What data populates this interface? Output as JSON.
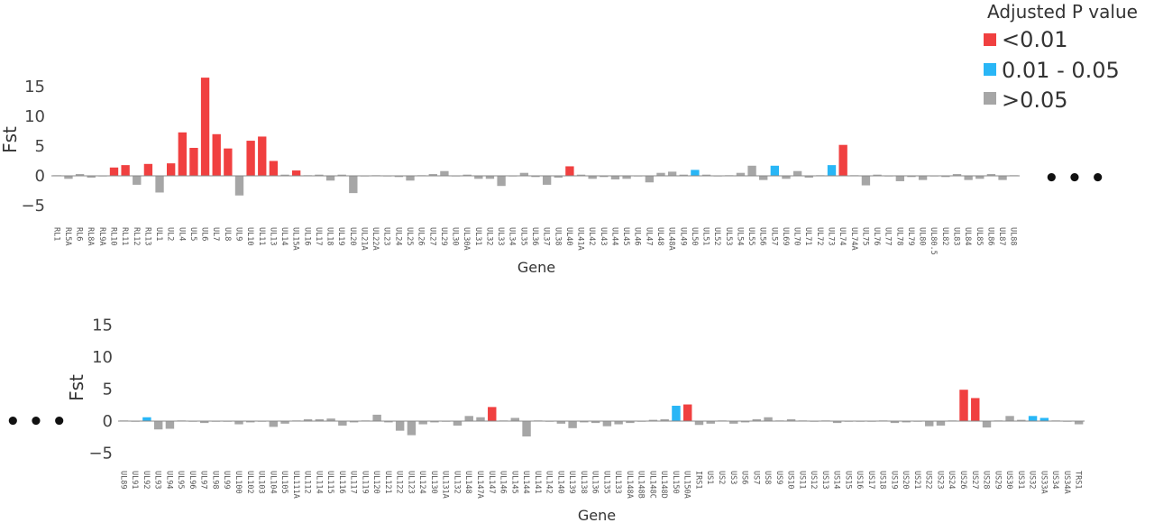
{
  "colors": {
    "<0.01": "#f04040",
    "0.01 - 0.05": "#29b6f6",
    ">0.05": "#a6a6a6"
  },
  "legend": {
    "title": "Adjusted P value",
    "entries": [
      {
        "key": "<0.01",
        "label": "<0.01"
      },
      {
        "key": "0.01 - 0.05",
        "label": "0.01 - 0.05"
      },
      {
        "key": ">0.05",
        "label": ">0.05"
      }
    ]
  },
  "continuation_marker": "• • •",
  "chart_data": [
    {
      "type": "bar",
      "title": "",
      "xlabel": "Gene",
      "ylabel": "Fst",
      "ylim": [
        -6,
        17.5
      ],
      "yticks": [
        -5,
        0,
        5,
        10,
        15
      ],
      "grid": false,
      "categories": [
        "RL1",
        "RL5A",
        "RL6",
        "RL8A",
        "RL9A",
        "RL10",
        "RL11",
        "RL12",
        "RL13",
        "UL1",
        "UL2",
        "UL4",
        "UL5",
        "UL6",
        "UL7",
        "UL8",
        "UL9",
        "UL10",
        "UL11",
        "UL13",
        "UL14",
        "UL15A",
        "UL16",
        "UL17",
        "UL18",
        "UL19",
        "UL20",
        "UL21A",
        "UL22A",
        "UL23",
        "UL24",
        "UL25",
        "UL26",
        "UL27",
        "UL29",
        "UL30",
        "UL30A",
        "UL31",
        "UL32",
        "UL33",
        "UL34",
        "UL35",
        "UL36",
        "UL37",
        "UL38",
        "UL40",
        "UL41A",
        "UL42",
        "UL43",
        "UL44",
        "UL45",
        "UL46",
        "UL47",
        "UL48",
        "UL48A",
        "UL49",
        "UL50",
        "UL51",
        "UL52",
        "UL53",
        "UL54",
        "UL55",
        "UL56",
        "UL57",
        "UL69",
        "UL70",
        "UL71",
        "UL72",
        "UL73",
        "UL74",
        "UL74A",
        "UL75",
        "UL76",
        "UL77",
        "UL78",
        "UL79",
        "UL80",
        "UL80.5",
        "UL82",
        "UL83",
        "UL84",
        "UL85",
        "UL86",
        "UL87",
        "UL88"
      ],
      "values": [
        0.1,
        -0.5,
        0.3,
        -0.3,
        -0.1,
        1.4,
        1.8,
        -1.5,
        2.0,
        -2.8,
        2.1,
        7.3,
        4.7,
        16.5,
        7.0,
        4.6,
        -3.3,
        5.9,
        6.6,
        2.5,
        0.2,
        0.9,
        0.1,
        0.2,
        -0.8,
        0.2,
        -2.9,
        -0.1,
        0.1,
        -0.1,
        -0.2,
        -0.8,
        0.1,
        0.3,
        0.8,
        -0.1,
        0.2,
        -0.5,
        -0.5,
        -1.7,
        -0.1,
        0.5,
        -0.2,
        -1.5,
        -0.3,
        1.6,
        0.2,
        -0.5,
        -0.2,
        -0.6,
        -0.5,
        -0.1,
        -1.1,
        0.5,
        0.7,
        0.2,
        1.0,
        0.2,
        -0.1,
        0.1,
        0.5,
        1.7,
        -0.7,
        1.7,
        -0.5,
        0.8,
        -0.3,
        0.1,
        1.8,
        5.2,
        0.1,
        -1.6,
        0.2,
        -0.1,
        -0.9,
        -0.2,
        -0.7,
        -0.1,
        -0.2,
        0.3,
        -0.7,
        -0.5,
        0.3,
        -0.7,
        0.1
      ],
      "significance": [
        "ns",
        "ns",
        "ns",
        "ns",
        "ns",
        "<0.01",
        "<0.01",
        "ns",
        "<0.01",
        "ns",
        "<0.01",
        "<0.01",
        "<0.01",
        "<0.01",
        "<0.01",
        "<0.01",
        "ns",
        "<0.01",
        "<0.01",
        "<0.01",
        "ns",
        "<0.01",
        "ns",
        "ns",
        "ns",
        "ns",
        "ns",
        "ns",
        "ns",
        "ns",
        "ns",
        "ns",
        "ns",
        "ns",
        "ns",
        "ns",
        "ns",
        "ns",
        "ns",
        "ns",
        "ns",
        "ns",
        "ns",
        "ns",
        "ns",
        "<0.01",
        "ns",
        "ns",
        "ns",
        "ns",
        "ns",
        "ns",
        "ns",
        "ns",
        "ns",
        "ns",
        "0.01-0.05",
        "ns",
        "ns",
        "ns",
        "ns",
        "ns",
        "ns",
        "0.01-0.05",
        "ns",
        "ns",
        "ns",
        "ns",
        "0.01-0.05",
        "<0.01",
        "ns",
        "ns",
        "ns",
        "ns",
        "ns",
        "ns",
        "ns",
        "ns",
        "ns",
        "ns",
        "ns",
        "ns",
        "ns",
        "ns",
        "ns"
      ]
    },
    {
      "type": "bar",
      "title": "",
      "xlabel": "Gene",
      "ylabel": "Fst",
      "ylim": [
        -6,
        17.5
      ],
      "yticks": [
        -5,
        0,
        5,
        10,
        15
      ],
      "grid": false,
      "categories": [
        "UL89",
        "UL91",
        "UL92",
        "UL93",
        "UL94",
        "UL95",
        "UL96",
        "UL97",
        "UL98",
        "UL99",
        "UL100",
        "UL102",
        "UL103",
        "UL104",
        "UL105",
        "UL111A",
        "UL112",
        "UL114",
        "UL115",
        "UL116",
        "UL117",
        "UL119",
        "UL120",
        "UL121",
        "UL122",
        "UL123",
        "UL124",
        "UL130",
        "UL131A",
        "UL132",
        "UL148",
        "UL147A",
        "UL147",
        "UL146",
        "UL145",
        "UL144",
        "UL141",
        "UL142",
        "UL140",
        "UL139",
        "UL138",
        "UL136",
        "UL135",
        "UL133",
        "UL148A",
        "UL148B",
        "UL148C",
        "UL148D",
        "UL150",
        "UL150A",
        "IRS1",
        "US1",
        "US2",
        "US3",
        "US6",
        "US7",
        "US8",
        "US9",
        "US10",
        "US11",
        "US12",
        "US13",
        "US14",
        "US15",
        "US16",
        "US17",
        "US18",
        "US19",
        "US20",
        "US21",
        "US22",
        "US23",
        "US24",
        "US26",
        "US27",
        "US28",
        "US29",
        "US30",
        "US31",
        "US32",
        "US33A",
        "US34",
        "US34A",
        "TRS1"
      ],
      "values": [
        0.1,
        -0.1,
        0.6,
        -1.3,
        -1.2,
        0.1,
        -0.1,
        -0.3,
        -0.1,
        -0.1,
        -0.5,
        -0.2,
        -0.1,
        -0.9,
        -0.4,
        0.1,
        0.3,
        0.3,
        0.4,
        -0.7,
        -0.2,
        0.1,
        1.0,
        -0.2,
        -1.5,
        -2.2,
        -0.5,
        -0.2,
        -0.1,
        -0.7,
        0.8,
        0.6,
        2.2,
        0.1,
        0.5,
        -2.4,
        0.1,
        -0.1,
        -0.4,
        -1.1,
        -0.2,
        -0.3,
        -0.8,
        -0.5,
        -0.3,
        -0.1,
        0.2,
        0.3,
        2.4,
        2.6,
        -0.6,
        -0.4,
        0.1,
        -0.4,
        -0.2,
        0.3,
        0.6,
        0.1,
        0.3,
        0.1,
        -0.1,
        0.1,
        -0.3,
        -0.1,
        -0.1,
        -0.1,
        0.1,
        -0.3,
        -0.2,
        -0.1,
        -0.8,
        -0.7,
        0.1,
        4.9,
        3.6,
        -1.0,
        0.1,
        0.8,
        0.2,
        0.8,
        0.5,
        0.1,
        -0.1,
        -0.5
      ],
      "significance": [
        "ns",
        "ns",
        "0.01-0.05",
        "ns",
        "ns",
        "ns",
        "ns",
        "ns",
        "ns",
        "ns",
        "ns",
        "ns",
        "ns",
        "ns",
        "ns",
        "ns",
        "ns",
        "ns",
        "ns",
        "ns",
        "ns",
        "ns",
        "ns",
        "ns",
        "ns",
        "ns",
        "ns",
        "ns",
        "ns",
        "ns",
        "ns",
        "ns",
        "<0.01",
        "ns",
        "ns",
        "ns",
        "ns",
        "ns",
        "ns",
        "ns",
        "ns",
        "ns",
        "ns",
        "ns",
        "ns",
        "ns",
        "ns",
        "ns",
        "0.01-0.05",
        "<0.01",
        "ns",
        "ns",
        "ns",
        "ns",
        "ns",
        "ns",
        "ns",
        "ns",
        "ns",
        "ns",
        "ns",
        "ns",
        "ns",
        "ns",
        "ns",
        "ns",
        "ns",
        "ns",
        "ns",
        "ns",
        "ns",
        "ns",
        "ns",
        "<0.01",
        "<0.01",
        "ns",
        "ns",
        "ns",
        "ns",
        "0.01-0.05",
        "0.01-0.05",
        "ns",
        "ns",
        "ns"
      ]
    }
  ]
}
